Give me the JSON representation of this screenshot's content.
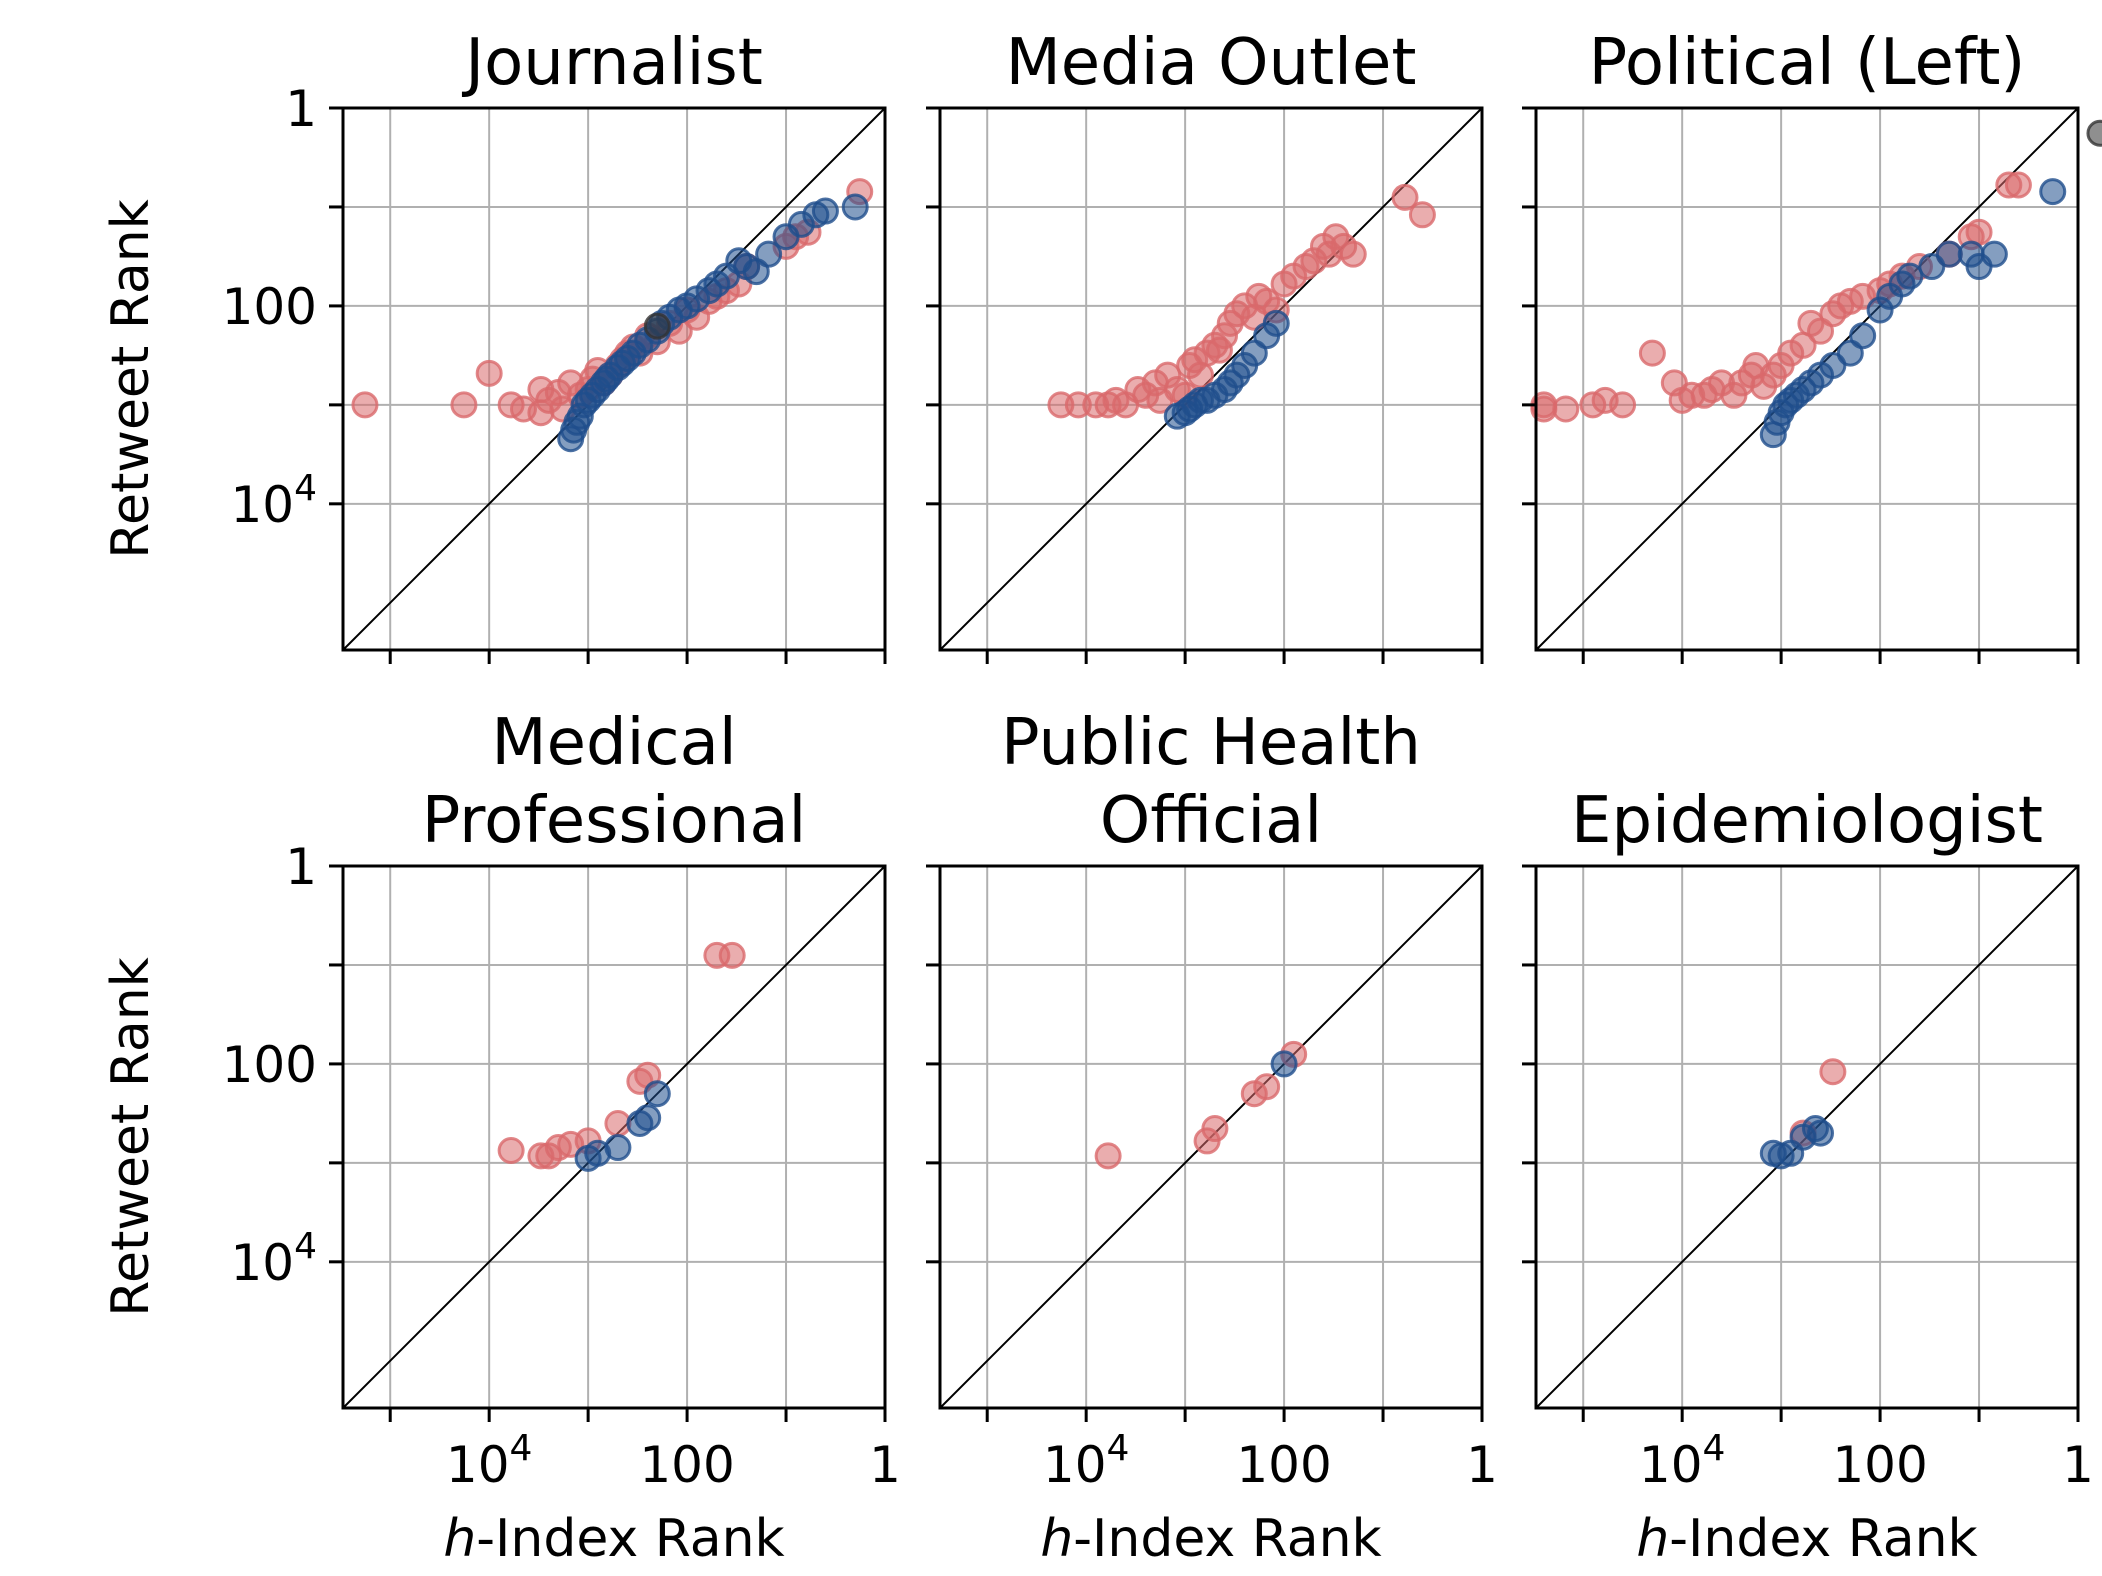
{
  "chart_data": [
    {
      "type": "scatter",
      "title": "Journalist",
      "xlabel": "",
      "ylabel": "Retweet Rank",
      "xscale": "log",
      "yscale": "log",
      "xlim": [
        300000,
        1
      ],
      "ylim": [
        300000,
        1
      ],
      "xticks": [
        100000,
        10000,
        1000,
        100,
        10,
        1
      ],
      "yticks": [
        1,
        10,
        100,
        1000,
        10000
      ],
      "yticklabels": [
        "1",
        "",
        "100",
        "",
        "10^4"
      ],
      "grid": true,
      "colors": {
        "red": "#d9696b",
        "blue": "#1f4e8c",
        "black": "#333333"
      },
      "series": [
        {
          "color": "red",
          "points": [
            [
              180000,
              1000
            ],
            [
              18000,
              1000
            ],
            [
              10000,
              480
            ],
            [
              6000,
              1000
            ],
            [
              4500,
              1100
            ],
            [
              3000,
              700
            ],
            [
              3000,
              1200
            ],
            [
              2500,
              900
            ],
            [
              2000,
              750
            ],
            [
              1800,
              1100
            ],
            [
              1500,
              600
            ],
            [
              1200,
              800
            ],
            [
              1000,
              700
            ],
            [
              900,
              550
            ],
            [
              800,
              450
            ],
            [
              700,
              600
            ],
            [
              600,
              500
            ],
            [
              500,
              400
            ],
            [
              450,
              350
            ],
            [
              400,
              300
            ],
            [
              350,
              260
            ],
            [
              300,
              300
            ],
            [
              250,
              200
            ],
            [
              200,
              230
            ],
            [
              150,
              150
            ],
            [
              120,
              180
            ],
            [
              100,
              110
            ],
            [
              80,
              130
            ],
            [
              60,
              90
            ],
            [
              50,
              80
            ],
            [
              40,
              70
            ],
            [
              30,
              60
            ],
            [
              25,
              40
            ],
            [
              10,
              25
            ],
            [
              8,
              20
            ],
            [
              6,
              18
            ],
            [
              1.8,
              7
            ]
          ]
        },
        {
          "color": "blue",
          "points": [
            [
              1500,
              2200
            ],
            [
              1400,
              1800
            ],
            [
              1300,
              1500
            ],
            [
              1200,
              1300
            ],
            [
              1100,
              1000
            ],
            [
              1000,
              900
            ],
            [
              900,
              800
            ],
            [
              800,
              700
            ],
            [
              700,
              600
            ],
            [
              650,
              550
            ],
            [
              600,
              500
            ],
            [
              500,
              420
            ],
            [
              450,
              380
            ],
            [
              400,
              340
            ],
            [
              350,
              300
            ],
            [
              300,
              250
            ],
            [
              250,
              220
            ],
            [
              200,
              180
            ],
            [
              180,
              150
            ],
            [
              150,
              130
            ],
            [
              120,
              110
            ],
            [
              100,
              100
            ],
            [
              80,
              85
            ],
            [
              60,
              70
            ],
            [
              50,
              60
            ],
            [
              40,
              50
            ],
            [
              30,
              35
            ],
            [
              25,
              40
            ],
            [
              20,
              45
            ],
            [
              15,
              30
            ],
            [
              10,
              20
            ],
            [
              7,
              15
            ],
            [
              5,
              12
            ],
            [
              4,
              11
            ],
            [
              2,
              10
            ]
          ]
        },
        {
          "color": "black",
          "points": [
            [
              200,
              160
            ]
          ]
        }
      ]
    },
    {
      "type": "scatter",
      "title": "Media Outlet",
      "xlabel": "",
      "ylabel": "",
      "xscale": "log",
      "yscale": "log",
      "xlim": [
        300000,
        1
      ],
      "ylim": [
        300000,
        1
      ],
      "grid": true,
      "colors": {
        "red": "#d9696b",
        "blue": "#1f4e8c"
      },
      "series": [
        {
          "color": "red",
          "points": [
            [
              18000,
              1000
            ],
            [
              12000,
              1000
            ],
            [
              8000,
              1000
            ],
            [
              6000,
              1000
            ],
            [
              5000,
              900
            ],
            [
              4000,
              1000
            ],
            [
              3000,
              700
            ],
            [
              2500,
              800
            ],
            [
              2000,
              600
            ],
            [
              1800,
              900
            ],
            [
              1500,
              500
            ],
            [
              1200,
              700
            ],
            [
              1000,
              800
            ],
            [
              900,
              400
            ],
            [
              800,
              350
            ],
            [
              700,
              500
            ],
            [
              600,
              300
            ],
            [
              500,
              250
            ],
            [
              450,
              280
            ],
            [
              400,
              200
            ],
            [
              350,
              150
            ],
            [
              300,
              120
            ],
            [
              250,
              100
            ],
            [
              200,
              130
            ],
            [
              180,
              80
            ],
            [
              150,
              90
            ],
            [
              120,
              110
            ],
            [
              100,
              60
            ],
            [
              80,
              50
            ],
            [
              60,
              40
            ],
            [
              50,
              35
            ],
            [
              40,
              25
            ],
            [
              35,
              30
            ],
            [
              30,
              20
            ],
            [
              25,
              25
            ],
            [
              20,
              30
            ],
            [
              6,
              8
            ],
            [
              4,
              12
            ]
          ]
        },
        {
          "color": "blue",
          "points": [
            [
              1200,
              1300
            ],
            [
              1000,
              1200
            ],
            [
              900,
              1100
            ],
            [
              800,
              1000
            ],
            [
              700,
              900
            ],
            [
              600,
              900
            ],
            [
              500,
              800
            ],
            [
              400,
              700
            ],
            [
              350,
              600
            ],
            [
              300,
              500
            ],
            [
              250,
              400
            ],
            [
              200,
              300
            ],
            [
              150,
              200
            ],
            [
              120,
              150
            ]
          ]
        }
      ]
    },
    {
      "type": "scatter",
      "title": "Political (Left)",
      "xlabel": "",
      "ylabel": "",
      "xscale": "log",
      "yscale": "log",
      "xlim": [
        300000,
        1
      ],
      "ylim": [
        300000,
        1
      ],
      "grid": true,
      "colors": {
        "red": "#d9696b",
        "blue": "#1f4e8c",
        "black": "#333333"
      },
      "series": [
        {
          "color": "red",
          "points": [
            [
              250000,
              1100
            ],
            [
              250000,
              1000
            ],
            [
              150000,
              1100
            ],
            [
              80000,
              1000
            ],
            [
              60000,
              900
            ],
            [
              40000,
              1000
            ],
            [
              20000,
              300
            ],
            [
              12000,
              600
            ],
            [
              10000,
              900
            ],
            [
              8000,
              800
            ],
            [
              6000,
              800
            ],
            [
              5000,
              700
            ],
            [
              4000,
              600
            ],
            [
              3000,
              800
            ],
            [
              2500,
              600
            ],
            [
              2000,
              500
            ],
            [
              1800,
              400
            ],
            [
              1500,
              650
            ],
            [
              1200,
              500
            ],
            [
              1000,
              400
            ],
            [
              800,
              300
            ],
            [
              600,
              250
            ],
            [
              500,
              150
            ],
            [
              400,
              180
            ],
            [
              300,
              120
            ],
            [
              250,
              100
            ],
            [
              200,
              90
            ],
            [
              150,
              80
            ],
            [
              100,
              70
            ],
            [
              80,
              60
            ],
            [
              60,
              50
            ],
            [
              40,
              40
            ],
            [
              20,
              30
            ],
            [
              12,
              20
            ],
            [
              10,
              18
            ],
            [
              5,
              6
            ],
            [
              4,
              6
            ]
          ]
        },
        {
          "color": "blue",
          "points": [
            [
              1200,
              2000
            ],
            [
              1100,
              1500
            ],
            [
              1000,
              1200
            ],
            [
              900,
              1000
            ],
            [
              800,
              900
            ],
            [
              700,
              800
            ],
            [
              600,
              700
            ],
            [
              500,
              600
            ],
            [
              400,
              500
            ],
            [
              300,
              400
            ],
            [
              200,
              300
            ],
            [
              150,
              200
            ],
            [
              100,
              110
            ],
            [
              80,
              80
            ],
            [
              60,
              60
            ],
            [
              50,
              50
            ],
            [
              30,
              40
            ],
            [
              20,
              30
            ],
            [
              12,
              30
            ],
            [
              10,
              40
            ],
            [
              7,
              30
            ],
            [
              1.8,
              7
            ]
          ]
        },
        {
          "color": "black",
          "points": [
            [
              0.6,
              1.8
            ]
          ]
        }
      ]
    },
    {
      "type": "scatter",
      "title": "Medical\nProfessional",
      "xlabel": "h-Index Rank",
      "ylabel": "Retweet Rank",
      "xscale": "log",
      "yscale": "log",
      "xlim": [
        300000,
        1
      ],
      "ylim": [
        300000,
        1
      ],
      "xticks": [
        100000,
        10000,
        1000,
        100,
        10,
        1
      ],
      "xticklabels": [
        "",
        "10^4",
        "",
        "100",
        "",
        "1"
      ],
      "yticks": [
        1,
        10,
        100,
        1000,
        10000
      ],
      "yticklabels": [
        "1",
        "",
        "100",
        "",
        "10^4"
      ],
      "grid": true,
      "colors": {
        "red": "#d9696b",
        "blue": "#1f4e8c"
      },
      "series": [
        {
          "color": "red",
          "points": [
            [
              6000,
              750
            ],
            [
              3000,
              850
            ],
            [
              2500,
              850
            ],
            [
              2000,
              700
            ],
            [
              1500,
              650
            ],
            [
              1000,
              600
            ],
            [
              500,
              400
            ],
            [
              300,
              150
            ],
            [
              250,
              130
            ],
            [
              35,
              8
            ],
            [
              50,
              8
            ]
          ]
        },
        {
          "color": "blue",
          "points": [
            [
              1000,
              900
            ],
            [
              800,
              800
            ],
            [
              500,
              700
            ],
            [
              250,
              350
            ],
            [
              300,
              400
            ],
            [
              200,
              200
            ]
          ]
        }
      ]
    },
    {
      "type": "scatter",
      "title": "Public Health\nOfficial",
      "xlabel": "h-Index Rank",
      "ylabel": "",
      "xscale": "log",
      "yscale": "log",
      "xlim": [
        300000,
        1
      ],
      "ylim": [
        300000,
        1
      ],
      "xticks": [
        100000,
        10000,
        1000,
        100,
        10,
        1
      ],
      "xticklabels": [
        "",
        "10^4",
        "",
        "100",
        "",
        "1"
      ],
      "grid": true,
      "colors": {
        "red": "#d9696b",
        "blue": "#1f4e8c"
      },
      "series": [
        {
          "color": "red",
          "points": [
            [
              6000,
              850
            ],
            [
              600,
              600
            ],
            [
              500,
              450
            ],
            [
              200,
              200
            ],
            [
              150,
              170
            ],
            [
              80,
              80
            ]
          ]
        },
        {
          "color": "blue",
          "points": [
            [
              100,
              100
            ]
          ]
        }
      ]
    },
    {
      "type": "scatter",
      "title": "Epidemiologist",
      "xlabel": "h-Index Rank",
      "ylabel": "",
      "xscale": "log",
      "yscale": "log",
      "xlim": [
        300000,
        1
      ],
      "ylim": [
        300000,
        1
      ],
      "xticks": [
        100000,
        10000,
        1000,
        100,
        10,
        1
      ],
      "xticklabels": [
        "",
        "10^4",
        "",
        "100",
        "",
        "1"
      ],
      "grid": true,
      "colors": {
        "red": "#d9696b",
        "blue": "#1f4e8c"
      },
      "series": [
        {
          "color": "red",
          "points": [
            [
              600,
              500
            ],
            [
              300,
              120
            ]
          ]
        },
        {
          "color": "blue",
          "points": [
            [
              1200,
              800
            ],
            [
              1000,
              850
            ],
            [
              800,
              800
            ],
            [
              600,
              550
            ],
            [
              450,
              450
            ],
            [
              400,
              500
            ]
          ]
        }
      ]
    }
  ]
}
